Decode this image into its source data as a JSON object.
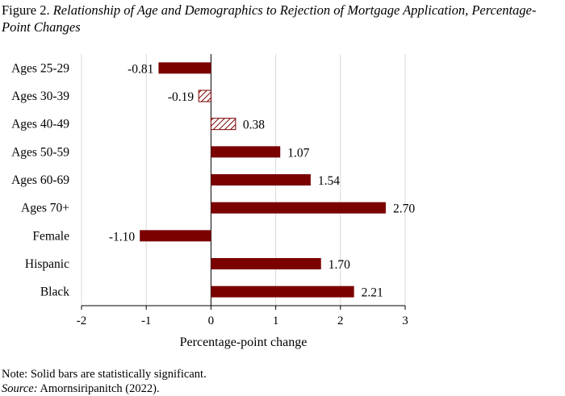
{
  "figure": {
    "label": "Figure 2.",
    "title": "Relationship of Age and Demographics to Rejection of Mortgage Application, Percentage-Point Changes"
  },
  "notes": {
    "note": "Note: Solid bars are statistically significant.",
    "source_label": "Source:",
    "source_text": "Amornsiripanitch (2022)."
  },
  "colors": {
    "bar": "#7b0000",
    "hatch_stroke": "#7b0000",
    "grid": "#d9d9d9",
    "axis": "#000000"
  },
  "chart_data": {
    "type": "bar",
    "orientation": "horizontal",
    "categories": [
      "Ages 25-29",
      "Ages 30-39",
      "Ages 40-49",
      "Ages 50-59",
      "Ages 60-69",
      "Ages 70+",
      "Female",
      "Hispanic",
      "Black"
    ],
    "values": [
      -0.81,
      -0.19,
      0.38,
      1.07,
      1.54,
      2.7,
      -1.1,
      1.7,
      2.21
    ],
    "value_labels": [
      "-0.81",
      "-0.19",
      "0.38",
      "1.07",
      "1.54",
      "2.70",
      "-1.10",
      "1.70",
      "2.21"
    ],
    "significant": [
      true,
      false,
      false,
      true,
      true,
      true,
      true,
      true,
      true
    ],
    "xlabel": "Percentage-point change",
    "xlim": [
      -2,
      3
    ],
    "xticks": [
      -2,
      -1,
      0,
      1,
      2,
      3
    ],
    "xtick_labels": [
      "-2",
      "-1",
      "0",
      "1",
      "2",
      "3"
    ],
    "grid": "vertical"
  }
}
